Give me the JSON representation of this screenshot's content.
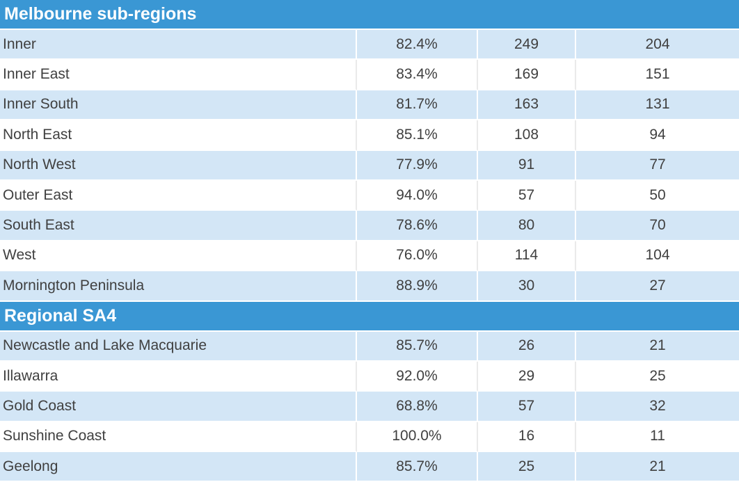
{
  "sections": [
    {
      "title": "Melbourne sub-regions",
      "rows": [
        {
          "name": "Inner",
          "pct": "82.4%",
          "n1": "249",
          "n2": "204"
        },
        {
          "name": "Inner East",
          "pct": "83.4%",
          "n1": "169",
          "n2": "151"
        },
        {
          "name": "Inner South",
          "pct": "81.7%",
          "n1": "163",
          "n2": "131"
        },
        {
          "name": "North East",
          "pct": "85.1%",
          "n1": "108",
          "n2": "94"
        },
        {
          "name": "North West",
          "pct": "77.9%",
          "n1": "91",
          "n2": "77"
        },
        {
          "name": "Outer East",
          "pct": "94.0%",
          "n1": "57",
          "n2": "50"
        },
        {
          "name": "South East",
          "pct": "78.6%",
          "n1": "80",
          "n2": "70"
        },
        {
          "name": "West",
          "pct": "76.0%",
          "n1": "114",
          "n2": "104"
        },
        {
          "name": "Mornington Peninsula",
          "pct": "88.9%",
          "n1": "30",
          "n2": "27"
        }
      ]
    },
    {
      "title": "Regional SA4",
      "rows": [
        {
          "name": "Newcastle and Lake Macquarie",
          "pct": "85.7%",
          "n1": "26",
          "n2": "21"
        },
        {
          "name": "Illawarra",
          "pct": "92.0%",
          "n1": "29",
          "n2": "25"
        },
        {
          "name": "Gold Coast",
          "pct": "68.8%",
          "n1": "57",
          "n2": "32"
        },
        {
          "name": "Sunshine Coast",
          "pct": "100.0%",
          "n1": "16",
          "n2": "11"
        },
        {
          "name": "Geelong",
          "pct": "85.7%",
          "n1": "25",
          "n2": "21"
        }
      ]
    }
  ],
  "colors": {
    "header": "#3a97d4",
    "shaded_row": "#d3e6f6",
    "text": "#404040"
  }
}
